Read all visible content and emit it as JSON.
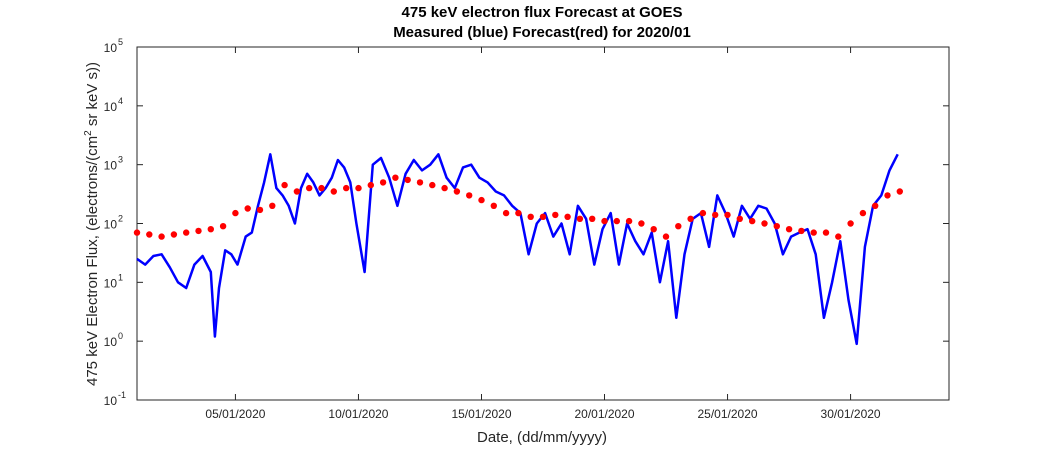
{
  "chart_data": {
    "type": "line",
    "title": "475 keV electron flux Forecast at GOES",
    "subtitle": "Measured (blue) Forecast(red) for 2020/01",
    "xlabel": "Date, (dd/mm/yyyy)",
    "ylabel": "475 keV Electron Flux, (electrons/(cm² sr keV s))",
    "ylabel_parts": [
      "475 keV Electron Flux, (electrons/(cm",
      "2",
      " sr keV s))"
    ],
    "yscale": "log",
    "ylim": [
      0.1,
      100000
    ],
    "xlim": [
      "2020-01-01",
      "2020-02-03"
    ],
    "grid": false,
    "xticks": [
      {
        "date": "2020-01-05",
        "label": "05/01/2020"
      },
      {
        "date": "2020-01-10",
        "label": "10/01/2020"
      },
      {
        "date": "2020-01-15",
        "label": "15/01/2020"
      },
      {
        "date": "2020-01-20",
        "label": "20/01/2020"
      },
      {
        "date": "2020-01-25",
        "label": "25/01/2020"
      },
      {
        "date": "2020-01-30",
        "label": "30/01/2020"
      }
    ],
    "yticks": [
      {
        "value": 0.1,
        "base": "10",
        "exp": "-1"
      },
      {
        "value": 1,
        "base": "10",
        "exp": "0"
      },
      {
        "value": 10,
        "base": "10",
        "exp": "1"
      },
      {
        "value": 100,
        "base": "10",
        "exp": "2"
      },
      {
        "value": 1000,
        "base": "10",
        "exp": "3"
      },
      {
        "value": 10000,
        "base": "10",
        "exp": "4"
      },
      {
        "value": 100000,
        "base": "10",
        "exp": "5"
      }
    ],
    "series": [
      {
        "color": "#0000ff",
        "style": "line",
        "x": [
          "2020-01-01T00:00",
          "2020-01-01T08:00",
          "2020-01-01T16:00",
          "2020-01-02T00:00",
          "2020-01-02T08:00",
          "2020-01-02T16:00",
          "2020-01-03T00:00",
          "2020-01-03T08:00",
          "2020-01-03T16:00",
          "2020-01-04T00:00",
          "2020-01-04T04:00",
          "2020-01-04T08:00",
          "2020-01-04T14:00",
          "2020-01-04T20:00",
          "2020-01-05T02:00",
          "2020-01-05T10:00",
          "2020-01-05T16:00",
          "2020-01-05T22:00",
          "2020-01-06T04:00",
          "2020-01-06T10:00",
          "2020-01-06T16:00",
          "2020-01-06T22:00",
          "2020-01-07T04:00",
          "2020-01-07T10:00",
          "2020-01-07T16:00",
          "2020-01-07T22:00",
          "2020-01-08T04:00",
          "2020-01-08T10:00",
          "2020-01-08T16:00",
          "2020-01-08T22:00",
          "2020-01-09T04:00",
          "2020-01-09T10:00",
          "2020-01-09T16:00",
          "2020-01-09T22:00",
          "2020-01-10T06:00",
          "2020-01-10T14:00",
          "2020-01-10T22:00",
          "2020-01-11T06:00",
          "2020-01-11T14:00",
          "2020-01-11T22:00",
          "2020-01-12T06:00",
          "2020-01-12T14:00",
          "2020-01-12T22:00",
          "2020-01-13T06:00",
          "2020-01-13T14:00",
          "2020-01-13T22:00",
          "2020-01-14T06:00",
          "2020-01-14T14:00",
          "2020-01-14T22:00",
          "2020-01-15T06:00",
          "2020-01-15T14:00",
          "2020-01-15T22:00",
          "2020-01-16T06:00",
          "2020-01-16T14:00",
          "2020-01-16T22:00",
          "2020-01-17T06:00",
          "2020-01-17T14:00",
          "2020-01-17T22:00",
          "2020-01-18T06:00",
          "2020-01-18T14:00",
          "2020-01-18T22:00",
          "2020-01-19T06:00",
          "2020-01-19T14:00",
          "2020-01-19T22:00",
          "2020-01-20T06:00",
          "2020-01-20T14:00",
          "2020-01-20T22:00",
          "2020-01-21T06:00",
          "2020-01-21T14:00",
          "2020-01-21T22:00",
          "2020-01-22T06:00",
          "2020-01-22T14:00",
          "2020-01-22T22:00",
          "2020-01-23T06:00",
          "2020-01-23T14:00",
          "2020-01-23T22:00",
          "2020-01-24T06:00",
          "2020-01-24T14:00",
          "2020-01-24T22:00",
          "2020-01-25T06:00",
          "2020-01-25T14:00",
          "2020-01-25T22:00",
          "2020-01-26T06:00",
          "2020-01-26T14:00",
          "2020-01-26T22:00",
          "2020-01-27T06:00",
          "2020-01-27T14:00",
          "2020-01-27T22:00",
          "2020-01-28T06:00",
          "2020-01-28T14:00",
          "2020-01-28T22:00",
          "2020-01-29T06:00",
          "2020-01-29T14:00",
          "2020-01-29T22:00",
          "2020-01-30T06:00",
          "2020-01-30T14:00",
          "2020-01-30T22:00",
          "2020-01-31T06:00",
          "2020-01-31T14:00",
          "2020-01-31T22:00"
        ],
        "values": [
          25,
          20,
          28,
          30,
          18,
          10,
          8,
          20,
          28,
          15,
          1.2,
          8,
          35,
          30,
          20,
          60,
          70,
          200,
          500,
          1500,
          400,
          300,
          200,
          100,
          400,
          700,
          500,
          300,
          400,
          600,
          1200,
          900,
          500,
          100,
          15,
          1000,
          1300,
          600,
          200,
          700,
          1200,
          800,
          1000,
          1500,
          600,
          400,
          900,
          1000,
          600,
          500,
          350,
          300,
          200,
          150,
          30,
          100,
          150,
          60,
          100,
          30,
          200,
          120,
          20,
          80,
          150,
          20,
          100,
          50,
          30,
          70,
          10,
          50,
          2.5,
          30,
          120,
          150,
          40,
          300,
          150,
          60,
          200,
          120,
          200,
          180,
          100,
          30,
          60,
          70,
          80,
          30,
          2.5,
          10,
          50,
          5,
          0.9,
          40,
          200,
          300,
          800,
          1500
        ]
      },
      {
        "color": "#ff0000",
        "style": "markers",
        "x": [
          "2020-01-01T00:00",
          "2020-01-01T12:00",
          "2020-01-02T00:00",
          "2020-01-02T12:00",
          "2020-01-03T00:00",
          "2020-01-03T12:00",
          "2020-01-04T00:00",
          "2020-01-04T12:00",
          "2020-01-05T00:00",
          "2020-01-05T12:00",
          "2020-01-06T00:00",
          "2020-01-06T12:00",
          "2020-01-07T00:00",
          "2020-01-07T12:00",
          "2020-01-08T00:00",
          "2020-01-08T12:00",
          "2020-01-09T00:00",
          "2020-01-09T12:00",
          "2020-01-10T00:00",
          "2020-01-10T12:00",
          "2020-01-11T00:00",
          "2020-01-11T12:00",
          "2020-01-12T00:00",
          "2020-01-12T12:00",
          "2020-01-13T00:00",
          "2020-01-13T12:00",
          "2020-01-14T00:00",
          "2020-01-14T12:00",
          "2020-01-15T00:00",
          "2020-01-15T12:00",
          "2020-01-16T00:00",
          "2020-01-16T12:00",
          "2020-01-17T00:00",
          "2020-01-17T12:00",
          "2020-01-18T00:00",
          "2020-01-18T12:00",
          "2020-01-19T00:00",
          "2020-01-19T12:00",
          "2020-01-20T00:00",
          "2020-01-20T12:00",
          "2020-01-21T00:00",
          "2020-01-21T12:00",
          "2020-01-22T00:00",
          "2020-01-22T12:00",
          "2020-01-23T00:00",
          "2020-01-23T12:00",
          "2020-01-24T00:00",
          "2020-01-24T12:00",
          "2020-01-25T00:00",
          "2020-01-25T12:00",
          "2020-01-26T00:00",
          "2020-01-26T12:00",
          "2020-01-27T00:00",
          "2020-01-27T12:00",
          "2020-01-28T00:00",
          "2020-01-28T12:00",
          "2020-01-29T00:00",
          "2020-01-29T12:00",
          "2020-01-30T00:00",
          "2020-01-30T12:00",
          "2020-01-31T00:00",
          "2020-01-31T12:00",
          "2020-02-01T00:00"
        ],
        "values": [
          70,
          65,
          60,
          65,
          70,
          75,
          80,
          90,
          150,
          180,
          170,
          200,
          450,
          350,
          400,
          400,
          350,
          400,
          400,
          450,
          500,
          600,
          550,
          500,
          450,
          400,
          350,
          300,
          250,
          200,
          150,
          150,
          130,
          130,
          140,
          130,
          120,
          120,
          110,
          110,
          110,
          100,
          80,
          60,
          90,
          120,
          150,
          140,
          140,
          120,
          110,
          100,
          90,
          80,
          75,
          70,
          70,
          60,
          100,
          150,
          200,
          300,
          350
        ]
      }
    ]
  }
}
